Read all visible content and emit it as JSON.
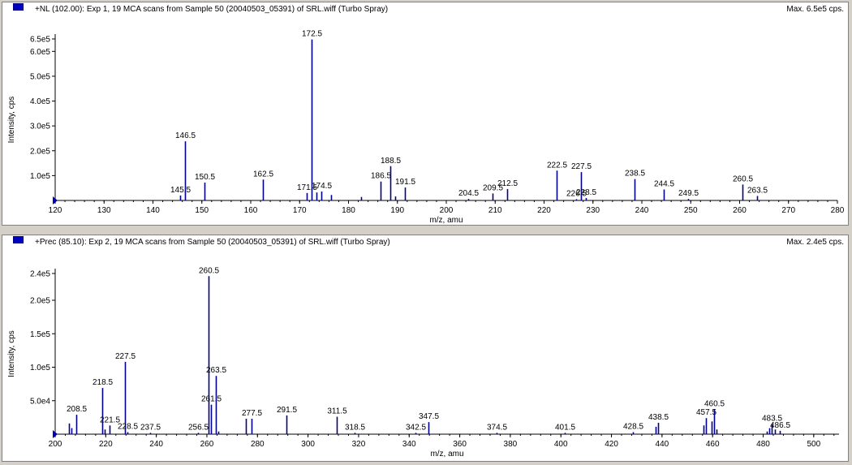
{
  "chart_data": [
    {
      "type": "bar",
      "header": "+NL (102.00): Exp 1, 19 MCA scans from Sample 50 (20040503_05391) of SRL.wiff (Turbo Spray)",
      "max_label": "Max. 6.5e5 cps.",
      "xlabel": "m/z, amu",
      "ylabel": "Intensity, cps",
      "xlim": [
        120,
        280
      ],
      "ylim": [
        0,
        650000
      ],
      "xticks": [
        120,
        130,
        140,
        150,
        160,
        170,
        180,
        190,
        200,
        210,
        220,
        230,
        240,
        250,
        260,
        270,
        280
      ],
      "yticks": [
        {
          "value": 100000,
          "label": "1.0e5"
        },
        {
          "value": 200000,
          "label": "2.0e5"
        },
        {
          "value": 300000,
          "label": "3.0e5"
        },
        {
          "value": 400000,
          "label": "4.0e5"
        },
        {
          "value": 500000,
          "label": "5.0e5"
        },
        {
          "value": 600000,
          "label": "6.0e5"
        },
        {
          "value": 650000,
          "label": "6.5e5"
        }
      ],
      "peaks": [
        {
          "mz": 145.5,
          "i": 20000,
          "label": "145.5"
        },
        {
          "mz": 146.5,
          "i": 238000,
          "label": "146.5"
        },
        {
          "mz": 150.5,
          "i": 72000,
          "label": "150.5"
        },
        {
          "mz": 162.5,
          "i": 84000,
          "label": "162.5"
        },
        {
          "mz": 171.5,
          "i": 30000,
          "label": "171.5"
        },
        {
          "mz": 172.5,
          "i": 648000,
          "label": "172.5"
        },
        {
          "mz": 173.5,
          "i": 32000
        },
        {
          "mz": 174.5,
          "i": 36000,
          "label": "174.5"
        },
        {
          "mz": 176.5,
          "i": 22000
        },
        {
          "mz": 182.5,
          "i": 14000
        },
        {
          "mz": 186.5,
          "i": 76000,
          "label": "186.5"
        },
        {
          "mz": 188.5,
          "i": 138000,
          "label": "188.5"
        },
        {
          "mz": 189.5,
          "i": 16000
        },
        {
          "mz": 191.5,
          "i": 52000,
          "label": "191.5"
        },
        {
          "mz": 204.5,
          "i": 6000,
          "label": "204.5"
        },
        {
          "mz": 209.5,
          "i": 28000,
          "label": "209.5"
        },
        {
          "mz": 212.5,
          "i": 46000,
          "label": "212.5"
        },
        {
          "mz": 222.5,
          "i": 120000,
          "label": "222.5"
        },
        {
          "mz": 226.5,
          "i": 5000,
          "label": "226.5"
        },
        {
          "mz": 227.5,
          "i": 114000,
          "label": "227.5"
        },
        {
          "mz": 228.5,
          "i": 10000,
          "label": "228.5"
        },
        {
          "mz": 238.5,
          "i": 86000,
          "label": "238.5"
        },
        {
          "mz": 244.5,
          "i": 44000,
          "label": "244.5"
        },
        {
          "mz": 249.5,
          "i": 6000,
          "label": "249.5"
        },
        {
          "mz": 260.5,
          "i": 64000,
          "label": "260.5"
        },
        {
          "mz": 263.5,
          "i": 18000,
          "label": "263.5"
        }
      ]
    },
    {
      "type": "bar",
      "header": "+Prec (85.10): Exp 2, 19 MCA scans from Sample 50 (20040503_05391) of SRL.wiff (Turbo Spray)",
      "max_label": "Max. 2.4e5 cps.",
      "xlabel": "m/z, amu",
      "ylabel": "Intensity, cps",
      "xlim": [
        200,
        510
      ],
      "ylim": [
        0,
        240000
      ],
      "xticks": [
        200,
        220,
        240,
        260,
        280,
        300,
        320,
        340,
        360,
        380,
        400,
        420,
        440,
        460,
        480,
        500
      ],
      "yticks": [
        {
          "value": 50000,
          "label": "5.0e4"
        },
        {
          "value": 100000,
          "label": "1.0e5"
        },
        {
          "value": 150000,
          "label": "1.5e5"
        },
        {
          "value": 200000,
          "label": "2.0e5"
        },
        {
          "value": 240000,
          "label": "2.4e5"
        }
      ],
      "peaks": [
        {
          "mz": 205.5,
          "i": 16000
        },
        {
          "mz": 206.5,
          "i": 9000
        },
        {
          "mz": 208.5,
          "i": 29000,
          "label": "208.5"
        },
        {
          "mz": 218.5,
          "i": 69000,
          "label": "218.5"
        },
        {
          "mz": 219.5,
          "i": 7000
        },
        {
          "mz": 221.5,
          "i": 13000,
          "label": "221.5"
        },
        {
          "mz": 227.5,
          "i": 108000,
          "label": "227.5"
        },
        {
          "mz": 228.5,
          "i": 3000,
          "label": "228.5"
        },
        {
          "mz": 237.5,
          "i": 2000,
          "label": "237.5"
        },
        {
          "mz": 256.5,
          "i": 2000,
          "label": "256.5"
        },
        {
          "mz": 260.5,
          "i": 236000,
          "label": "260.5"
        },
        {
          "mz": 261.5,
          "i": 44000,
          "label": "261.5"
        },
        {
          "mz": 263.5,
          "i": 87000,
          "label": "263.5"
        },
        {
          "mz": 264.5,
          "i": 4000
        },
        {
          "mz": 275.5,
          "i": 23000
        },
        {
          "mz": 277.5,
          "i": 23000,
          "label": "277.5"
        },
        {
          "mz": 291.5,
          "i": 28000,
          "label": "291.5"
        },
        {
          "mz": 311.5,
          "i": 26000,
          "label": "311.5"
        },
        {
          "mz": 318.5,
          "i": 2000,
          "label": "318.5"
        },
        {
          "mz": 342.5,
          "i": 2000,
          "label": "342.5"
        },
        {
          "mz": 347.5,
          "i": 18000,
          "label": "347.5"
        },
        {
          "mz": 374.5,
          "i": 2000,
          "label": "374.5"
        },
        {
          "mz": 401.5,
          "i": 2000,
          "label": "401.5"
        },
        {
          "mz": 428.5,
          "i": 3000,
          "label": "428.5"
        },
        {
          "mz": 437.5,
          "i": 11000
        },
        {
          "mz": 438.5,
          "i": 17000,
          "label": "438.5"
        },
        {
          "mz": 456.5,
          "i": 13000
        },
        {
          "mz": 457.5,
          "i": 24000,
          "label": "457.5"
        },
        {
          "mz": 459.5,
          "i": 19000
        },
        {
          "mz": 460.5,
          "i": 37000,
          "label": "460.5"
        },
        {
          "mz": 461.5,
          "i": 7000
        },
        {
          "mz": 481.5,
          "i": 4000
        },
        {
          "mz": 482.5,
          "i": 9000
        },
        {
          "mz": 483.5,
          "i": 15000,
          "label": "483.5"
        },
        {
          "mz": 484.5,
          "i": 7000
        },
        {
          "mz": 486.5,
          "i": 5000,
          "label": "486.5"
        }
      ]
    }
  ],
  "colors": {
    "peak": "#00008b",
    "axis": "#000000",
    "marker": "#0000c0"
  }
}
